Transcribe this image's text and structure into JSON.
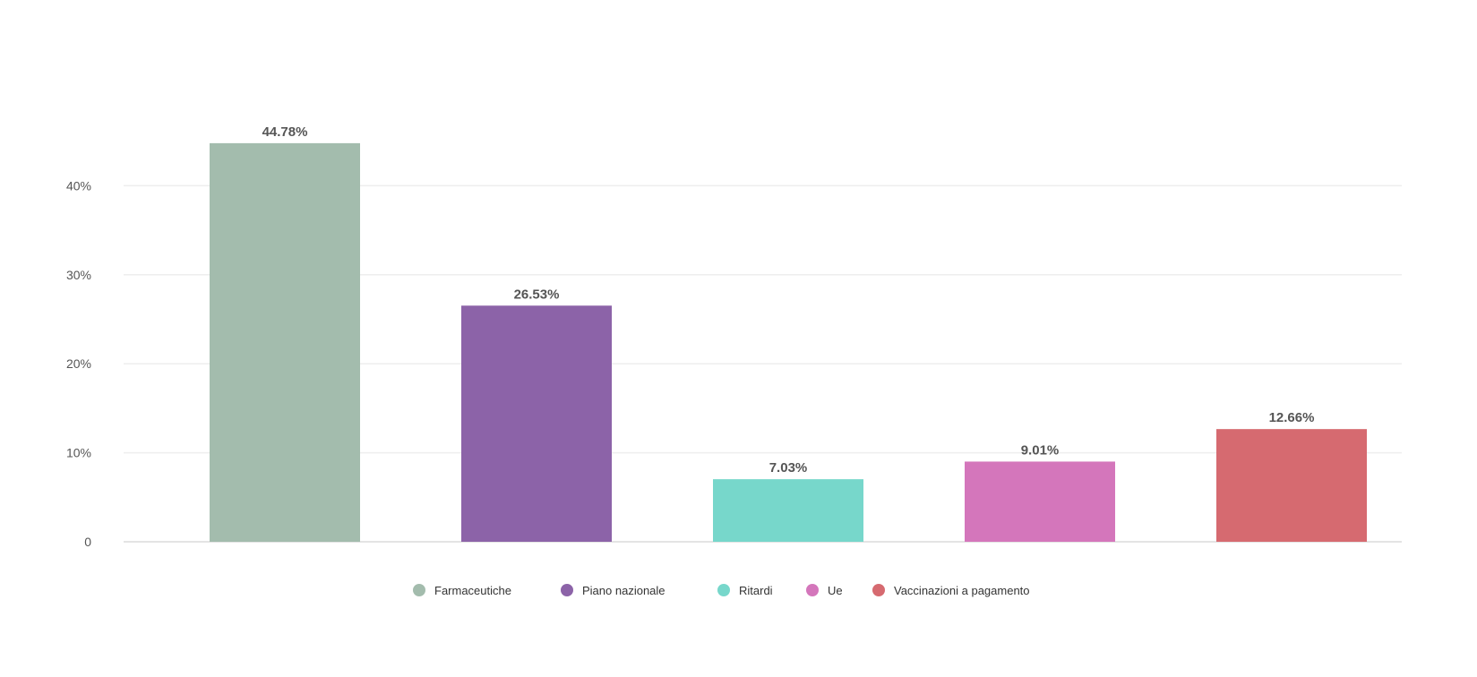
{
  "chart_data": {
    "type": "bar",
    "title": "",
    "xlabel": "",
    "ylabel": "",
    "categories": [
      "Farmaceutiche",
      "Piano nazionale",
      "Ritardi",
      "Ue",
      "Vaccinazioni a pagamento"
    ],
    "values": [
      44.78,
      26.53,
      7.03,
      9.01,
      12.66
    ],
    "data_labels": [
      "44.78%",
      "26.53%",
      "7.03%",
      "9.01%",
      "12.66%"
    ],
    "colors": [
      "#a3bcad",
      "#8c63a8",
      "#77d7cb",
      "#d476bb",
      "#d66a70"
    ],
    "ylim": [
      0,
      50
    ],
    "y_ticks": [
      0,
      10,
      20,
      30,
      40
    ],
    "y_tick_labels": [
      "0",
      "10%",
      "20%",
      "30%",
      "40%"
    ],
    "grid": true,
    "legend": {
      "position": "bottom",
      "entries": [
        "Farmaceutiche",
        "Piano nazionale",
        "Ritardi",
        "Ue",
        "Vaccinazioni a pagamento"
      ]
    }
  }
}
